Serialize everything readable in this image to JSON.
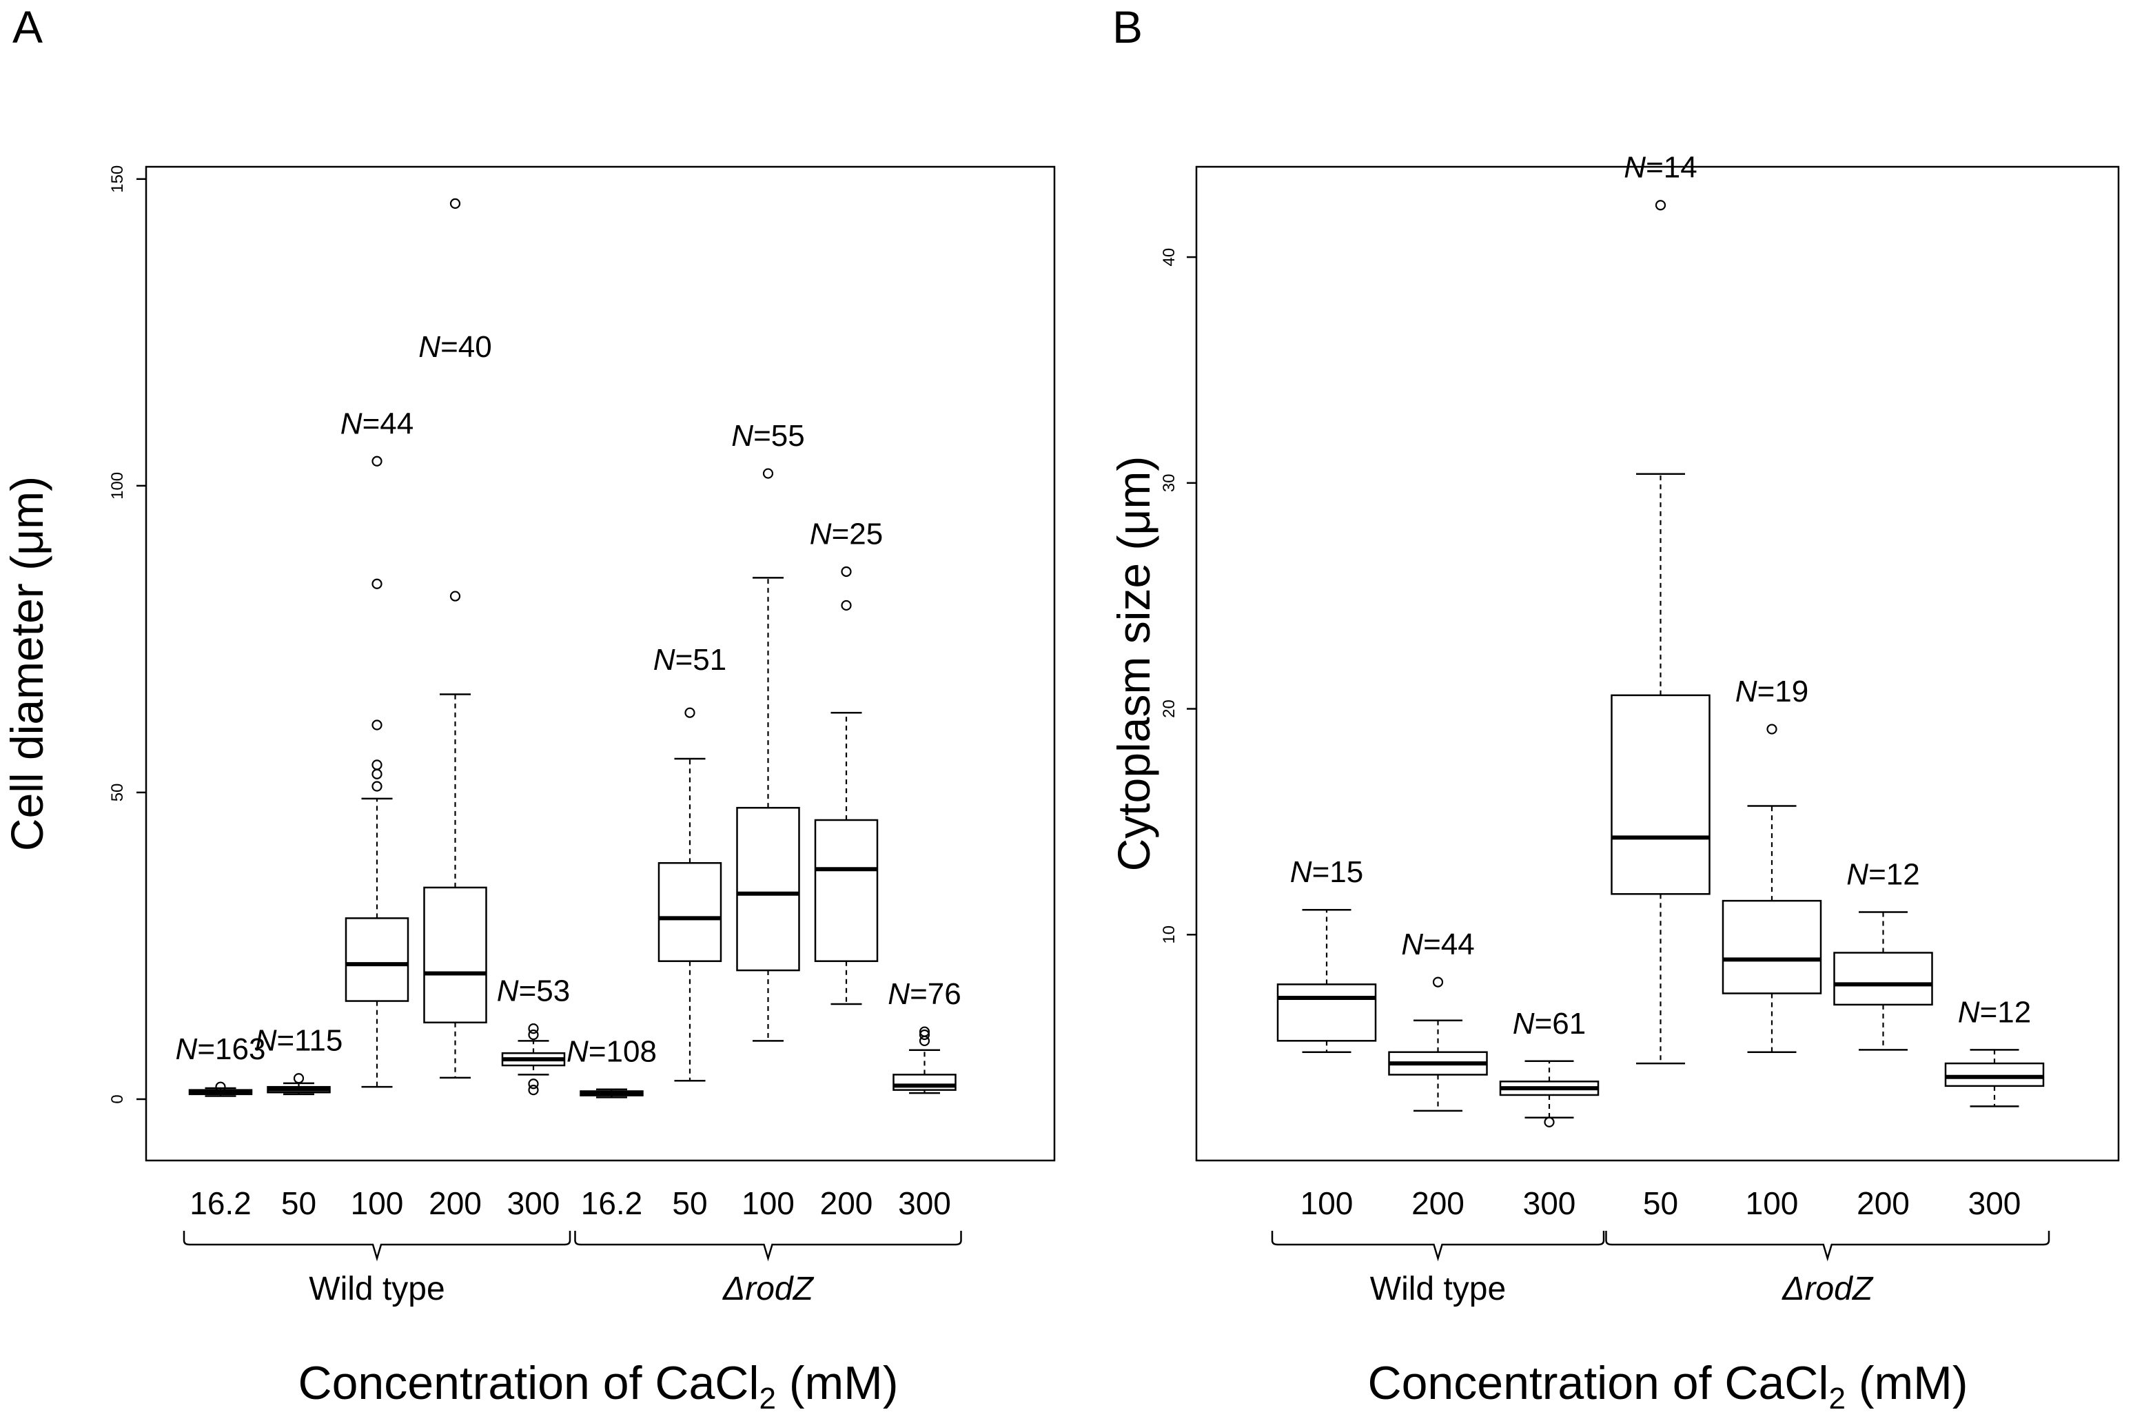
{
  "chart_data": [
    {
      "panel": "A",
      "type": "box",
      "ylabel": "Cell diameter (μm)",
      "xlabel": "Concentration of CaCl",
      "xlabel_sub": "2",
      "xlabel_tail": " (mM)",
      "ylim": [
        -10,
        152
      ],
      "yticks": [
        0,
        50,
        100,
        150
      ],
      "groups": [
        {
          "name": "Wild type",
          "italic": false,
          "from": 0,
          "to": 4
        },
        {
          "name": "ΔrodZ",
          "italic": true,
          "from": 5,
          "to": 9
        }
      ],
      "boxes": [
        {
          "category": "16.2",
          "n_prefix": "N",
          "n_value": "=163",
          "whisker_low": 0.5,
          "q1": 0.8,
          "median": 1.2,
          "q3": 1.5,
          "whisker_high": 1.8,
          "outliers": [
            2.0
          ]
        },
        {
          "category": "50",
          "n_prefix": "N",
          "n_value": "=115",
          "whisker_low": 0.8,
          "q1": 1.1,
          "median": 1.6,
          "q3": 2.0,
          "whisker_high": 2.6,
          "outliers": [
            3.4
          ]
        },
        {
          "category": "100",
          "n_prefix": "N",
          "n_value": "=44",
          "whisker_low": 2,
          "q1": 16,
          "median": 22,
          "q3": 29.5,
          "whisker_high": 49,
          "outliers": [
            51,
            53,
            54.5,
            61,
            84,
            104
          ]
        },
        {
          "category": "200",
          "n_prefix": "N",
          "n_value": "=40",
          "whisker_low": 3.5,
          "q1": 12.5,
          "median": 20.5,
          "q3": 34.5,
          "whisker_high": 66,
          "outliers": [
            82,
            146
          ]
        },
        {
          "category": "300",
          "n_prefix": "N",
          "n_value": "=53",
          "whisker_low": 4,
          "q1": 5.5,
          "median": 6.5,
          "q3": 7.5,
          "whisker_high": 9.5,
          "outliers": [
            1.5,
            2.5,
            10.5,
            11.5
          ]
        },
        {
          "category": "16.2",
          "n_prefix": "N",
          "n_value": "=108",
          "whisker_low": 0.3,
          "q1": 0.6,
          "median": 1.0,
          "q3": 1.3,
          "whisker_high": 1.6,
          "outliers": []
        },
        {
          "category": "50",
          "n_prefix": "N",
          "n_value": "=51",
          "whisker_low": 3,
          "q1": 22.5,
          "median": 29.5,
          "q3": 38.5,
          "whisker_high": 55.5,
          "outliers": [
            63
          ]
        },
        {
          "category": "100",
          "n_prefix": "N",
          "n_value": "=55",
          "whisker_low": 9.5,
          "q1": 21,
          "median": 33.5,
          "q3": 47.5,
          "whisker_high": 85,
          "outliers": [
            102
          ]
        },
        {
          "category": "200",
          "n_prefix": "N",
          "n_value": "=25",
          "whisker_low": 15.5,
          "q1": 22.5,
          "median": 37.5,
          "q3": 45.5,
          "whisker_high": 63,
          "outliers": [
            80.5,
            86
          ]
        },
        {
          "category": "300",
          "n_prefix": "N",
          "n_value": "=76",
          "whisker_low": 1,
          "q1": 1.5,
          "median": 2.2,
          "q3": 4,
          "whisker_high": 8,
          "outliers": [
            9.5,
            10.5,
            11
          ]
        }
      ]
    },
    {
      "panel": "B",
      "type": "box",
      "ylabel": "Cytoplasm size (μm)",
      "xlabel": "Concentration of CaCl",
      "xlabel_sub": "2",
      "xlabel_tail": " (mM)",
      "ylim": [
        0,
        44
      ],
      "yticks": [
        10,
        20,
        30,
        40
      ],
      "groups": [
        {
          "name": "Wild type",
          "italic": false,
          "from": 0,
          "to": 2
        },
        {
          "name": "ΔrodZ",
          "italic": true,
          "from": 3,
          "to": 6
        }
      ],
      "boxes": [
        {
          "category": "100",
          "n_prefix": "N",
          "n_value": "=15",
          "whisker_low": 4.8,
          "q1": 5.3,
          "median": 7.2,
          "q3": 7.8,
          "whisker_high": 11.1,
          "outliers": []
        },
        {
          "category": "200",
          "n_prefix": "N",
          "n_value": "=44",
          "whisker_low": 2.2,
          "q1": 3.8,
          "median": 4.3,
          "q3": 4.8,
          "whisker_high": 6.2,
          "outliers": [
            7.9
          ]
        },
        {
          "category": "300",
          "n_prefix": "N",
          "n_value": "=61",
          "whisker_low": 1.9,
          "q1": 2.9,
          "median": 3.2,
          "q3": 3.5,
          "whisker_high": 4.4,
          "outliers": [
            1.7
          ]
        },
        {
          "category": "50",
          "n_prefix": "N",
          "n_value": "=14",
          "whisker_low": 4.3,
          "q1": 11.8,
          "median": 14.3,
          "q3": 20.6,
          "whisker_high": 30.4,
          "outliers": [
            42.3
          ]
        },
        {
          "category": "100",
          "n_prefix": "N",
          "n_value": "=19",
          "whisker_low": 4.8,
          "q1": 7.4,
          "median": 8.9,
          "q3": 11.5,
          "whisker_high": 15.7,
          "outliers": [
            19.1
          ]
        },
        {
          "category": "200",
          "n_prefix": "N",
          "n_value": "=12",
          "whisker_low": 4.9,
          "q1": 6.9,
          "median": 7.8,
          "q3": 9.2,
          "whisker_high": 11.0,
          "outliers": []
        },
        {
          "category": "300",
          "n_prefix": "N",
          "n_value": "=12",
          "whisker_low": 2.4,
          "q1": 3.3,
          "median": 3.7,
          "q3": 4.3,
          "whisker_high": 4.9,
          "outliers": []
        }
      ]
    }
  ]
}
